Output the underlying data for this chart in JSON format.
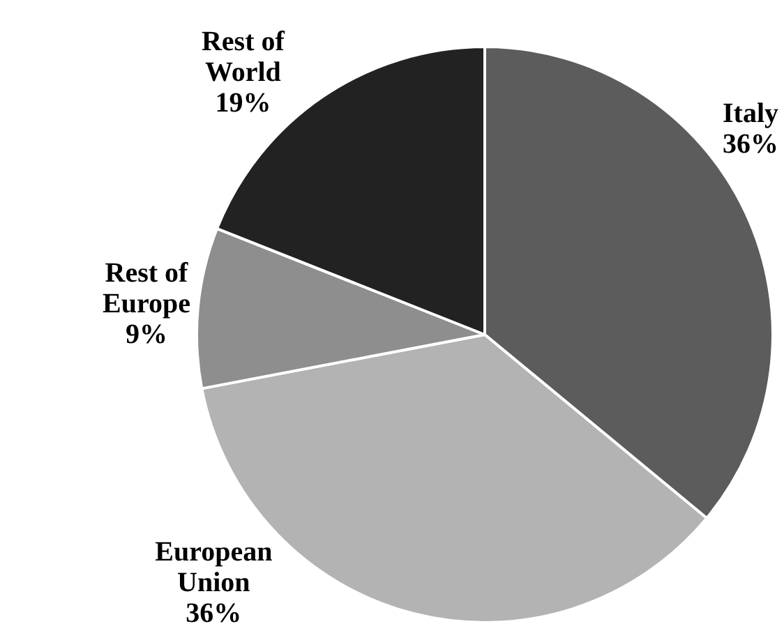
{
  "chart_data": {
    "type": "pie",
    "categories": [
      "Italy",
      "European Union",
      "Rest of Europe",
      "Rest of World"
    ],
    "values": [
      36,
      36,
      9,
      19
    ],
    "value_labels": [
      "36%",
      "36%",
      "9%",
      "19%"
    ],
    "colors": [
      "#5c5c5c",
      "#b3b3b3",
      "#8e8e8e",
      "#222222"
    ],
    "legend": false
  }
}
